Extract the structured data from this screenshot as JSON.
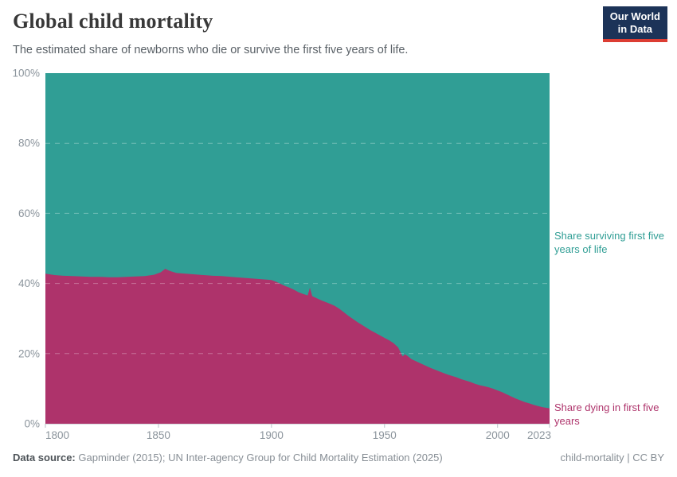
{
  "logo": {
    "line1": "Our World",
    "line2": "in Data",
    "bg": "#1C3358",
    "accent": "#DC3D33"
  },
  "chart_data": {
    "type": "area",
    "stacked": true,
    "title": "Global child mortality",
    "subtitle": "The estimated share of newborns who die or survive the first five years of life.",
    "xlabel": "",
    "ylabel": "",
    "xlim": [
      1800,
      2023
    ],
    "ylim": [
      0,
      100
    ],
    "grid": "horizontal dashed lines every 20%, drawn over the filled areas",
    "legend_position": "inline labels at right edge of plot",
    "x": [
      1800,
      1804,
      1808,
      1812,
      1816,
      1820,
      1824,
      1828,
      1832,
      1836,
      1840,
      1844,
      1848,
      1851,
      1853,
      1855,
      1858,
      1862,
      1866,
      1870,
      1874,
      1878,
      1882,
      1886,
      1890,
      1894,
      1898,
      1900,
      1902,
      1904,
      1906,
      1908,
      1910,
      1912,
      1914,
      1916,
      1917,
      1918,
      1920,
      1922,
      1924,
      1926,
      1928,
      1930,
      1932,
      1934,
      1936,
      1938,
      1940,
      1942,
      1944,
      1946,
      1948,
      1950,
      1952,
      1954,
      1956,
      1957,
      1958,
      1959,
      1960,
      1962,
      1964,
      1966,
      1968,
      1970,
      1972,
      1974,
      1976,
      1978,
      1980,
      1982,
      1984,
      1986,
      1988,
      1990,
      1992,
      1994,
      1996,
      1998,
      2000,
      2002,
      2004,
      2006,
      2008,
      2010,
      2012,
      2014,
      2016,
      2018,
      2020,
      2023
    ],
    "series": [
      {
        "name": "Share dying in first five years",
        "color": "#AE336B",
        "values": [
          42.8,
          42.4,
          42.2,
          42.1,
          42.0,
          41.9,
          41.9,
          41.8,
          41.8,
          41.9,
          42.0,
          42.1,
          42.5,
          43.2,
          44.2,
          43.6,
          43.0,
          42.8,
          42.6,
          42.4,
          42.2,
          42.1,
          41.9,
          41.7,
          41.5,
          41.3,
          41.1,
          41.0,
          40.5,
          39.9,
          39.3,
          38.8,
          38.2,
          37.5,
          37.0,
          36.6,
          38.8,
          36.4,
          35.8,
          35.2,
          34.7,
          34.2,
          33.6,
          32.8,
          31.8,
          30.8,
          29.9,
          29.0,
          28.2,
          27.4,
          26.6,
          25.9,
          25.2,
          24.5,
          23.8,
          23.0,
          21.8,
          20.5,
          19.2,
          19.8,
          19.4,
          18.4,
          17.8,
          17.2,
          16.6,
          16.0,
          15.5,
          15.0,
          14.5,
          14.0,
          13.6,
          13.2,
          12.7,
          12.3,
          11.9,
          11.4,
          11.0,
          10.7,
          10.4,
          10.0,
          9.5,
          9.0,
          8.4,
          7.8,
          7.2,
          6.7,
          6.2,
          5.8,
          5.4,
          5.0,
          4.7,
          4.4
        ]
      },
      {
        "name": "Share surviving first five years of life",
        "color": "#309E95",
        "values": [
          57.2,
          57.6,
          57.8,
          57.9,
          58.0,
          58.1,
          58.1,
          58.2,
          58.2,
          58.1,
          58.0,
          57.9,
          57.5,
          56.8,
          55.8,
          56.4,
          57.0,
          57.2,
          57.4,
          57.6,
          57.8,
          57.9,
          58.1,
          58.3,
          58.5,
          58.7,
          58.9,
          59.0,
          59.5,
          60.1,
          60.7,
          61.2,
          61.8,
          62.5,
          63.0,
          63.4,
          61.2,
          63.6,
          64.2,
          64.8,
          65.3,
          65.8,
          66.4,
          67.2,
          68.2,
          69.2,
          70.1,
          71.0,
          71.8,
          72.6,
          73.4,
          74.1,
          74.8,
          75.5,
          76.2,
          77.0,
          78.2,
          79.5,
          80.8,
          80.2,
          80.6,
          81.6,
          82.2,
          82.8,
          83.4,
          84.0,
          84.5,
          85.0,
          85.5,
          86.0,
          86.4,
          86.8,
          87.3,
          87.7,
          88.1,
          88.6,
          89.0,
          89.3,
          89.6,
          90.0,
          90.5,
          91.0,
          91.6,
          92.2,
          92.8,
          93.3,
          93.8,
          94.2,
          94.6,
          95.0,
          95.3,
          95.6
        ]
      }
    ],
    "x_ticks": {
      "values": [
        1800,
        1850,
        1900,
        1950,
        2000,
        2023
      ],
      "labels": [
        "1800",
        "1850",
        "1900",
        "1950",
        "2000",
        "2023"
      ]
    },
    "y_ticks": {
      "values": [
        0,
        20,
        40,
        60,
        80,
        100
      ],
      "labels": [
        "0%",
        "20%",
        "40%",
        "60%",
        "80%",
        "100%"
      ]
    }
  },
  "footer": {
    "source_label": "Data source:",
    "source": "Gapminder (2015); UN Inter-agency Group for Child Mortality Estimation (2025)",
    "note": "child-mortality | CC BY"
  }
}
